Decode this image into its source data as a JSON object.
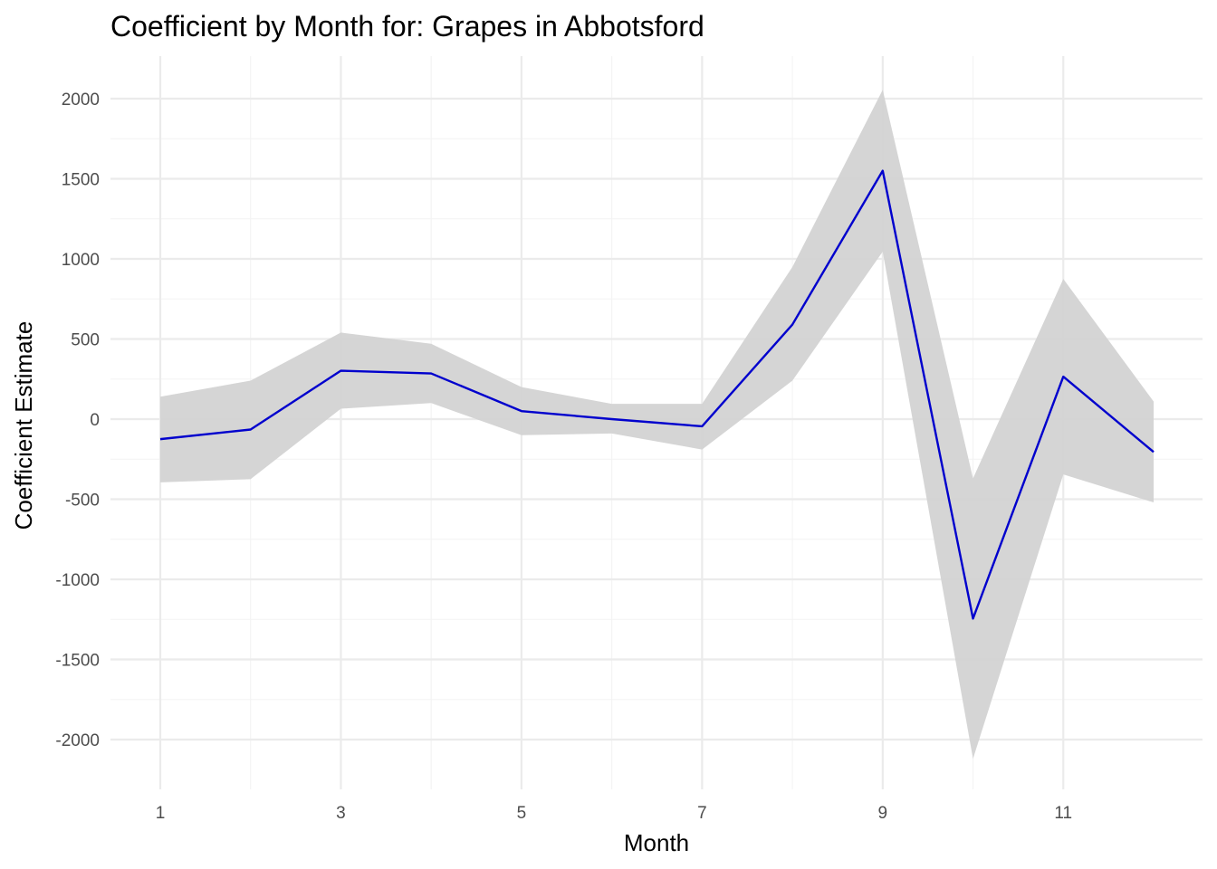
{
  "chart_data": {
    "type": "line",
    "title": "Coefficient by Month for: Grapes in Abbotsford",
    "xlabel": "Month",
    "ylabel": "Coefficient Estimate",
    "xlim": [
      1,
      12
    ],
    "ylim": [
      -2000,
      2000
    ],
    "x_ticks": [
      1,
      3,
      5,
      7,
      9,
      11
    ],
    "y_ticks": [
      -2000,
      -1500,
      -1000,
      -500,
      0,
      500,
      1000,
      1500,
      2000
    ],
    "grid": true,
    "legend": "none",
    "line_color": "#0000cd",
    "band_color": "#d3d3d3",
    "x": [
      1,
      2,
      3,
      4,
      5,
      6,
      7,
      8,
      9,
      10,
      11,
      12
    ],
    "series": [
      {
        "values": [
          -125,
          -65,
          302,
          285,
          50,
          0,
          -45,
          590,
          1550,
          -1245,
          265,
          -205
        ],
        "lower": [
          -395,
          -375,
          65,
          100,
          -100,
          -90,
          -190,
          240,
          1045,
          -2120,
          -345,
          -520
        ],
        "upper": [
          140,
          240,
          540,
          470,
          200,
          95,
          95,
          950,
          2055,
          -370,
          875,
          110
        ]
      }
    ]
  }
}
